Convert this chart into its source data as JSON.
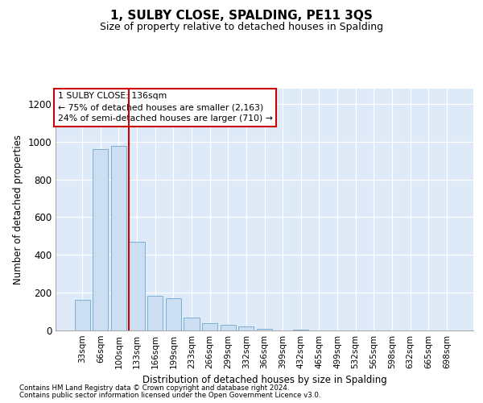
{
  "title": "1, SULBY CLOSE, SPALDING, PE11 3QS",
  "subtitle": "Size of property relative to detached houses in Spalding",
  "xlabel": "Distribution of detached houses by size in Spalding",
  "ylabel": "Number of detached properties",
  "bar_color": "#ccdff2",
  "bar_edge_color": "#7aafd4",
  "background_color": "#deeaf7",
  "categories": [
    "33sqm",
    "66sqm",
    "100sqm",
    "133sqm",
    "166sqm",
    "199sqm",
    "233sqm",
    "266sqm",
    "299sqm",
    "332sqm",
    "366sqm",
    "399sqm",
    "432sqm",
    "465sqm",
    "499sqm",
    "532sqm",
    "565sqm",
    "598sqm",
    "632sqm",
    "665sqm",
    "698sqm"
  ],
  "values": [
    163,
    962,
    975,
    468,
    182,
    172,
    70,
    37,
    28,
    20,
    9,
    0,
    5,
    0,
    0,
    0,
    0,
    0,
    0,
    0,
    0
  ],
  "ylim": [
    0,
    1280
  ],
  "yticks": [
    0,
    200,
    400,
    600,
    800,
    1000,
    1200
  ],
  "annotation_text": "1 SULBY CLOSE: 136sqm\n← 75% of detached houses are smaller (2,163)\n24% of semi-detached houses are larger (710) →",
  "annotation_box_color": "white",
  "annotation_box_edge_color": "#cc0000",
  "vline_color": "#cc0000",
  "vline_x": 2.57,
  "footnote1": "Contains HM Land Registry data © Crown copyright and database right 2024.",
  "footnote2": "Contains public sector information licensed under the Open Government Licence v3.0."
}
